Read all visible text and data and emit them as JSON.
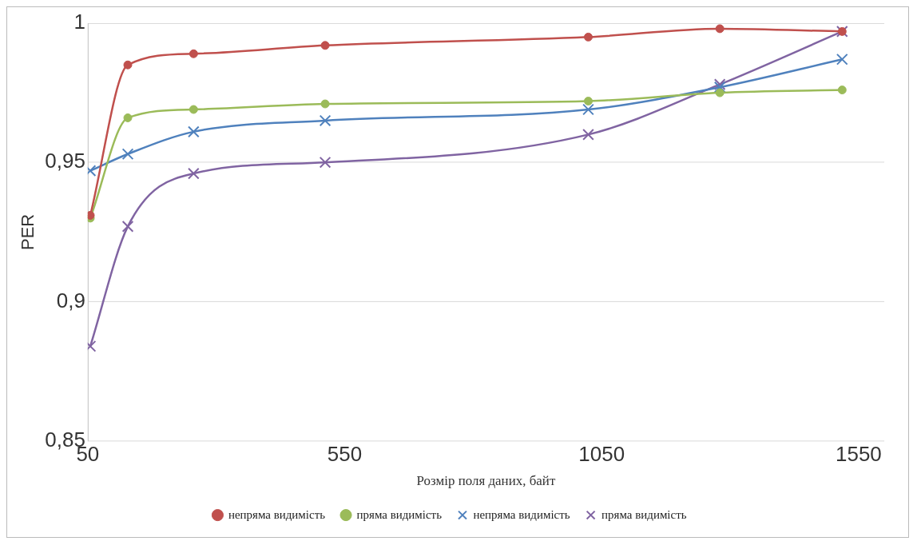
{
  "chart_data": {
    "type": "line",
    "xlabel": "Розмір поля даних, байт",
    "ylabel": "PER",
    "x": [
      55,
      128,
      256,
      512,
      1024,
      1280,
      1518
    ],
    "series": [
      {
        "name": "непряма видимість",
        "color": "#c0504d",
        "marker": "circle",
        "values": [
          0.931,
          0.985,
          0.989,
          0.992,
          0.995,
          0.998,
          0.997
        ]
      },
      {
        "name": "пряма видимість",
        "color": "#9bbb59",
        "marker": "circle",
        "values": [
          0.93,
          0.966,
          0.969,
          0.971,
          0.972,
          0.975,
          0.976
        ]
      },
      {
        "name": "непряма видимість",
        "color": "#4f81bd",
        "marker": "cross",
        "values": [
          0.947,
          0.953,
          0.961,
          0.965,
          0.969,
          0.977,
          0.987
        ]
      },
      {
        "name": "пряма видимість",
        "color": "#8064a2",
        "marker": "cross",
        "values": [
          0.884,
          0.927,
          0.946,
          0.95,
          0.96,
          0.978,
          0.997
        ]
      }
    ],
    "xlim": [
      50,
      1600
    ],
    "xticks": [
      50,
      550,
      1050,
      1550
    ],
    "ylim": [
      0.85,
      1
    ],
    "yticks": [
      {
        "value": 0.85,
        "label": "0,85"
      },
      {
        "value": 0.9,
        "label": "0,9"
      },
      {
        "value": 0.95,
        "label": "0,95"
      },
      {
        "value": 1,
        "label": "1"
      }
    ],
    "grid": "y",
    "legend": "bottom"
  }
}
